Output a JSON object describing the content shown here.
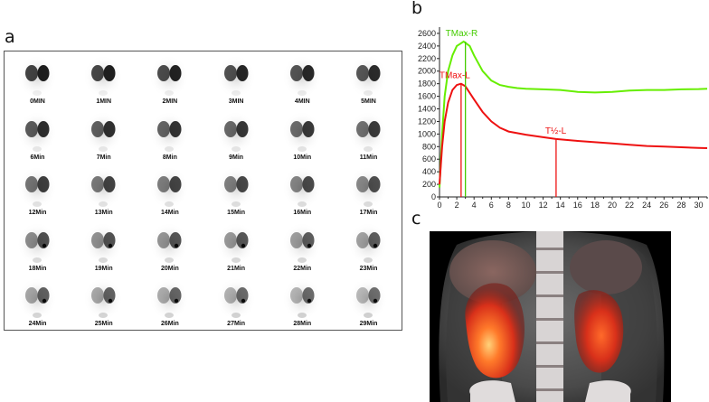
{
  "panel_labels": {
    "a": "a",
    "b": "b",
    "c": "c"
  },
  "scintigraphy_frames": [
    "0MIN",
    "1MIN",
    "2MIN",
    "3MIN",
    "4MIN",
    "5MIN",
    "6Min",
    "7Min",
    "8Min",
    "9Min",
    "10Min",
    "11Min",
    "12Min",
    "13Min",
    "14Min",
    "15Min",
    "16Min",
    "17Min",
    "18Min",
    "19Min",
    "20Min",
    "21Min",
    "22Min",
    "23Min",
    "24Min",
    "25Min",
    "26Min",
    "27Min",
    "28Min",
    "29Min"
  ],
  "chart_data": {
    "type": "line",
    "xlim": [
      0,
      31
    ],
    "ylim": [
      0,
      2700
    ],
    "x_ticks": [
      0,
      2,
      4,
      6,
      8,
      10,
      12,
      14,
      16,
      18,
      20,
      22,
      24,
      26,
      28,
      30
    ],
    "y_ticks": [
      0,
      200,
      400,
      600,
      800,
      1000,
      1200,
      1400,
      1600,
      1800,
      2000,
      2200,
      2400,
      2600
    ],
    "grid": false,
    "series": [
      {
        "color": "#66ee00",
        "points": [
          [
            0,
            150
          ],
          [
            0.3,
            1000
          ],
          [
            0.6,
            1600
          ],
          [
            1,
            2000
          ],
          [
            1.5,
            2250
          ],
          [
            2,
            2400
          ],
          [
            2.8,
            2470
          ],
          [
            3.5,
            2400
          ],
          [
            4,
            2250
          ],
          [
            5,
            2000
          ],
          [
            6,
            1850
          ],
          [
            7,
            1780
          ],
          [
            8,
            1750
          ],
          [
            9,
            1730
          ],
          [
            10,
            1720
          ],
          [
            12,
            1710
          ],
          [
            14,
            1700
          ],
          [
            16,
            1670
          ],
          [
            18,
            1660
          ],
          [
            20,
            1670
          ],
          [
            22,
            1690
          ],
          [
            24,
            1700
          ],
          [
            26,
            1700
          ],
          [
            28,
            1710
          ],
          [
            30,
            1715
          ],
          [
            31,
            1720
          ]
        ]
      },
      {
        "color": "#ee1111",
        "points": [
          [
            0,
            200
          ],
          [
            0.3,
            800
          ],
          [
            0.6,
            1200
          ],
          [
            1,
            1500
          ],
          [
            1.5,
            1700
          ],
          [
            2,
            1780
          ],
          [
            2.5,
            1800
          ],
          [
            3,
            1760
          ],
          [
            4,
            1550
          ],
          [
            5,
            1350
          ],
          [
            6,
            1200
          ],
          [
            7,
            1100
          ],
          [
            8,
            1040
          ],
          [
            10,
            990
          ],
          [
            12,
            950
          ],
          [
            13.5,
            920
          ],
          [
            16,
            890
          ],
          [
            18,
            870
          ],
          [
            20,
            850
          ],
          [
            22,
            830
          ],
          [
            24,
            810
          ],
          [
            26,
            800
          ],
          [
            28,
            790
          ],
          [
            30,
            780
          ],
          [
            31,
            775
          ]
        ]
      }
    ],
    "markers": [
      {
        "label": "TMax-R",
        "x": 3.0,
        "color": "#44cc00",
        "y_top": 2470
      },
      {
        "label": "TMax-L",
        "x": 2.5,
        "color": "#ee1111",
        "y_top": 1800
      },
      {
        "label": "T½-L",
        "x": 13.5,
        "color": "#ee1111",
        "y_top": 920
      }
    ]
  }
}
